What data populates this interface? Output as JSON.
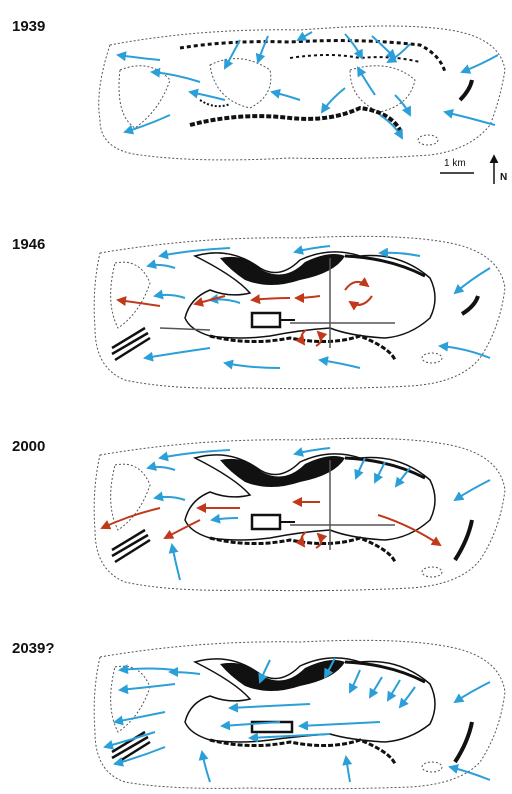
{
  "panels": [
    {
      "year": "1939"
    },
    {
      "year": "1946"
    },
    {
      "year": "2000"
    },
    {
      "year": "2039?"
    }
  ],
  "scale_label": "1 km",
  "north_label": "N",
  "colors": {
    "flow_inflow": "#2b9fd8",
    "flow_outflow": "#c0391b",
    "shoreline": "#111111",
    "boundary": "#555555"
  }
}
